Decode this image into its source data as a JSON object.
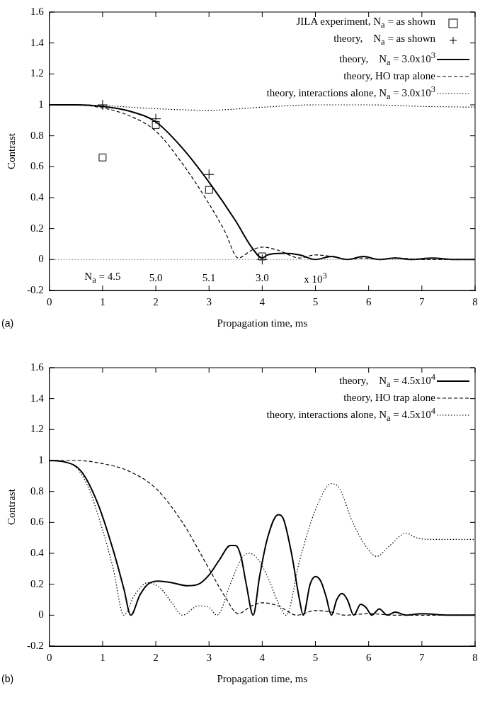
{
  "chart_data": [
    {
      "type": "line",
      "xlabel": "Propagation time, ms",
      "ylabel": "Contrast",
      "xlim": [
        0,
        8
      ],
      "ylim": [
        -0.2,
        1.6
      ],
      "xticks": [
        0,
        1,
        2,
        3,
        4,
        5,
        6,
        7,
        8
      ],
      "yticks": [
        -0.2,
        0,
        0.2,
        0.4,
        0.6,
        0.8,
        1,
        1.2,
        1.4,
        1.6
      ],
      "grid": false,
      "legend": "top right",
      "ref_lines": [
        {
          "axis": "y",
          "value": 0,
          "line_style": "dotted",
          "color": "#555555"
        }
      ],
      "annotations": [
        "(a)",
        "N$_{a}$ = 4.5",
        "5.0",
        "5.1",
        "3.0",
        "x 10$^{3}$"
      ],
      "series": [
        {
          "name": "JILA experiment, N$_{a}$ = as shown",
          "type": "scatter",
          "marker": "square",
          "color": "#000000",
          "x": [
            1,
            2,
            3,
            4
          ],
          "values": [
            0.66,
            0.87,
            0.45,
            0.02
          ]
        },
        {
          "name": "theory,    N$_{a}$ = as shown",
          "type": "scatter",
          "marker": "cross",
          "color": "#000000",
          "x": [
            1,
            2,
            3,
            4
          ],
          "values": [
            1.0,
            0.91,
            0.55,
            0.0
          ]
        },
        {
          "name": "theory,    N$_{a}$ = 3.0x10$^{3}$",
          "type": "line",
          "marker": "none",
          "line_style": "solid",
          "color": "#000000",
          "x": [
            0,
            0.5,
            1,
            1.5,
            2,
            2.5,
            3,
            3.5,
            3.8,
            4,
            4.1,
            4.4,
            4.7,
            5,
            5.3,
            5.6,
            5.9,
            6.2,
            6.5,
            6.8,
            7.2,
            7.6,
            8
          ],
          "values": [
            1,
            1,
            0.99,
            0.96,
            0.89,
            0.72,
            0.5,
            0.25,
            0.08,
            0.01,
            0.03,
            0.04,
            0.03,
            0.0,
            0.02,
            0.0,
            0.02,
            0.0,
            0.01,
            0.0,
            0.01,
            0.0,
            0.0
          ]
        },
        {
          "name": "theory, HO trap alone",
          "type": "line",
          "marker": "none",
          "line_style": "dashed",
          "color": "#000000",
          "x": [
            0,
            0.5,
            1,
            1.5,
            2,
            2.5,
            3,
            3.3,
            3.55,
            3.8,
            4,
            4.3,
            4.7,
            5,
            5.3,
            5.6,
            5.9,
            6.2,
            6.5,
            7,
            8
          ],
          "values": [
            1,
            1,
            0.98,
            0.93,
            0.83,
            0.62,
            0.36,
            0.18,
            0.01,
            0.06,
            0.08,
            0.06,
            0.01,
            0.03,
            0.02,
            0.0,
            0.01,
            0.0,
            0.01,
            0,
            0
          ]
        },
        {
          "name": "theory, interactions alone, N$_{a}$ = 3.0x10$^{3}$",
          "type": "line",
          "marker": "none",
          "line_style": "dotted",
          "color": "#000000",
          "x": [
            0,
            1,
            2,
            3,
            4,
            5,
            6,
            7,
            8
          ],
          "values": [
            1,
            0.995,
            0.975,
            0.965,
            0.985,
            1.0,
            1.0,
            0.99,
            0.985
          ]
        }
      ]
    },
    {
      "type": "line",
      "xlabel": "Propagation time, ms",
      "ylabel": "Contrast",
      "xlim": [
        0,
        8
      ],
      "ylim": [
        -0.2,
        1.6
      ],
      "xticks": [
        0,
        1,
        2,
        3,
        4,
        5,
        6,
        7,
        8
      ],
      "yticks": [
        -0.2,
        0,
        0.2,
        0.4,
        0.6,
        0.8,
        1,
        1.2,
        1.4,
        1.6
      ],
      "grid": false,
      "legend": "top right",
      "annotations": [
        "(b)"
      ],
      "series": [
        {
          "name": "theory,    N$_{a}$ = 4.5x10$^{4}$",
          "type": "line",
          "marker": "none",
          "line_style": "solid",
          "color": "#000000",
          "x": [
            0,
            0.3,
            0.6,
            0.9,
            1.2,
            1.4,
            1.53,
            1.7,
            1.85,
            2.05,
            2.3,
            2.6,
            2.8,
            3.0,
            3.2,
            3.4,
            3.5,
            3.6,
            3.7,
            3.83,
            3.95,
            4.1,
            4.3,
            4.4,
            4.55,
            4.7,
            4.77,
            4.9,
            5.0,
            5.1,
            5.2,
            5.3,
            5.4,
            5.5,
            5.6,
            5.72,
            5.85,
            5.95,
            6.06,
            6.2,
            6.35,
            6.5,
            6.7,
            7,
            7.5,
            8
          ],
          "values": [
            1,
            0.99,
            0.93,
            0.73,
            0.42,
            0.17,
            0.0,
            0.13,
            0.2,
            0.22,
            0.21,
            0.19,
            0.2,
            0.26,
            0.36,
            0.45,
            0.45,
            0.38,
            0.2,
            0.0,
            0.25,
            0.5,
            0.65,
            0.62,
            0.4,
            0.1,
            0.0,
            0.2,
            0.25,
            0.22,
            0.12,
            0.0,
            0.1,
            0.14,
            0.1,
            0.0,
            0.07,
            0.05,
            0.0,
            0.04,
            0.0,
            0.02,
            0.0,
            0.01,
            0,
            0
          ]
        },
        {
          "name": "theory, HO trap alone",
          "type": "line",
          "marker": "none",
          "line_style": "dashed",
          "color": "#000000",
          "x": [
            0,
            0.5,
            1,
            1.5,
            2,
            2.5,
            3,
            3.3,
            3.55,
            3.8,
            4.0,
            4.3,
            4.65,
            5,
            5.3,
            5.55,
            6,
            6.5,
            8
          ],
          "values": [
            1,
            1,
            0.98,
            0.93,
            0.82,
            0.6,
            0.3,
            0.12,
            0.01,
            0.06,
            0.08,
            0.06,
            0.0,
            0.03,
            0.02,
            0.0,
            0.01,
            0.0,
            0
          ]
        },
        {
          "name": "theory, interactions alone, N$_{a}$ = 4.5x10$^{4}$",
          "type": "line",
          "marker": "none",
          "line_style": "dotted",
          "color": "#000000",
          "x": [
            0,
            0.4,
            0.7,
            1.0,
            1.2,
            1.4,
            1.6,
            1.85,
            2.1,
            2.3,
            2.5,
            2.8,
            3.0,
            3.15,
            3.4,
            3.6,
            3.75,
            3.9,
            4.1,
            4.3,
            4.45,
            4.7,
            5.0,
            5.3,
            5.45,
            5.7,
            6.0,
            6.15,
            6.4,
            6.7,
            6.9,
            7.2,
            8
          ],
          "values": [
            1,
            0.98,
            0.85,
            0.55,
            0.3,
            0.0,
            0.13,
            0.21,
            0.17,
            0.08,
            0.0,
            0.06,
            0.05,
            0.0,
            0.2,
            0.36,
            0.4,
            0.37,
            0.25,
            0.08,
            0.0,
            0.35,
            0.68,
            0.85,
            0.82,
            0.6,
            0.42,
            0.38,
            0.45,
            0.53,
            0.5,
            0.49,
            0.49
          ]
        }
      ]
    }
  ]
}
